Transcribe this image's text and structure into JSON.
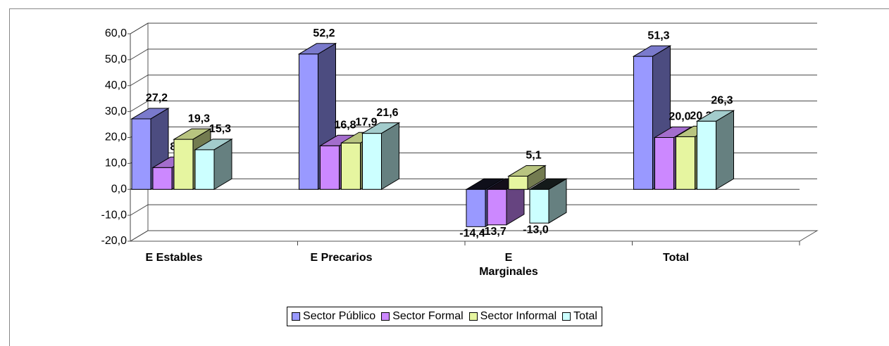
{
  "chart_data": {
    "type": "bar3d",
    "categories": [
      "E Estables",
      "E Precarios",
      "E Marginales",
      "Total"
    ],
    "series": [
      {
        "name": "Sector Público",
        "color": "#9999ff",
        "values": [
          27.2,
          52.2,
          -14.4,
          51.3
        ],
        "value_labels": [
          "27,2",
          "52,2",
          "-14,4",
          "51,3"
        ]
      },
      {
        "name": "Sector Formal",
        "color": "#cc88ff",
        "values": [
          8.4,
          16.8,
          -13.7,
          20.0
        ],
        "value_labels": [
          "8,4",
          "16,8",
          "-13,7",
          "20,0"
        ]
      },
      {
        "name": "Sector Informal",
        "color": "#e6f5a0",
        "values": [
          19.3,
          17.9,
          5.1,
          20.3
        ],
        "value_labels": [
          "19,3",
          "17,9",
          "5,1",
          "20,3"
        ]
      },
      {
        "name": "Total",
        "color": "#ccffff",
        "values": [
          15.3,
          21.6,
          -13.0,
          26.3
        ],
        "value_labels": [
          "15,3",
          "21,6",
          "-13,0",
          "26,3"
        ]
      }
    ],
    "ylim": [
      -20,
      60
    ],
    "yticks": [
      {
        "value": -20,
        "label": "-20,0"
      },
      {
        "value": -10,
        "label": "-10,0"
      },
      {
        "value": 0,
        "label": "0,0"
      },
      {
        "value": 10,
        "label": "10,0"
      },
      {
        "value": 20,
        "label": "20,0"
      },
      {
        "value": 30,
        "label": "30,0"
      },
      {
        "value": 40,
        "label": "40,0"
      },
      {
        "value": 50,
        "label": "50,0"
      },
      {
        "value": 60,
        "label": "60,0"
      }
    ],
    "grid": true,
    "legend": "bottom"
  }
}
